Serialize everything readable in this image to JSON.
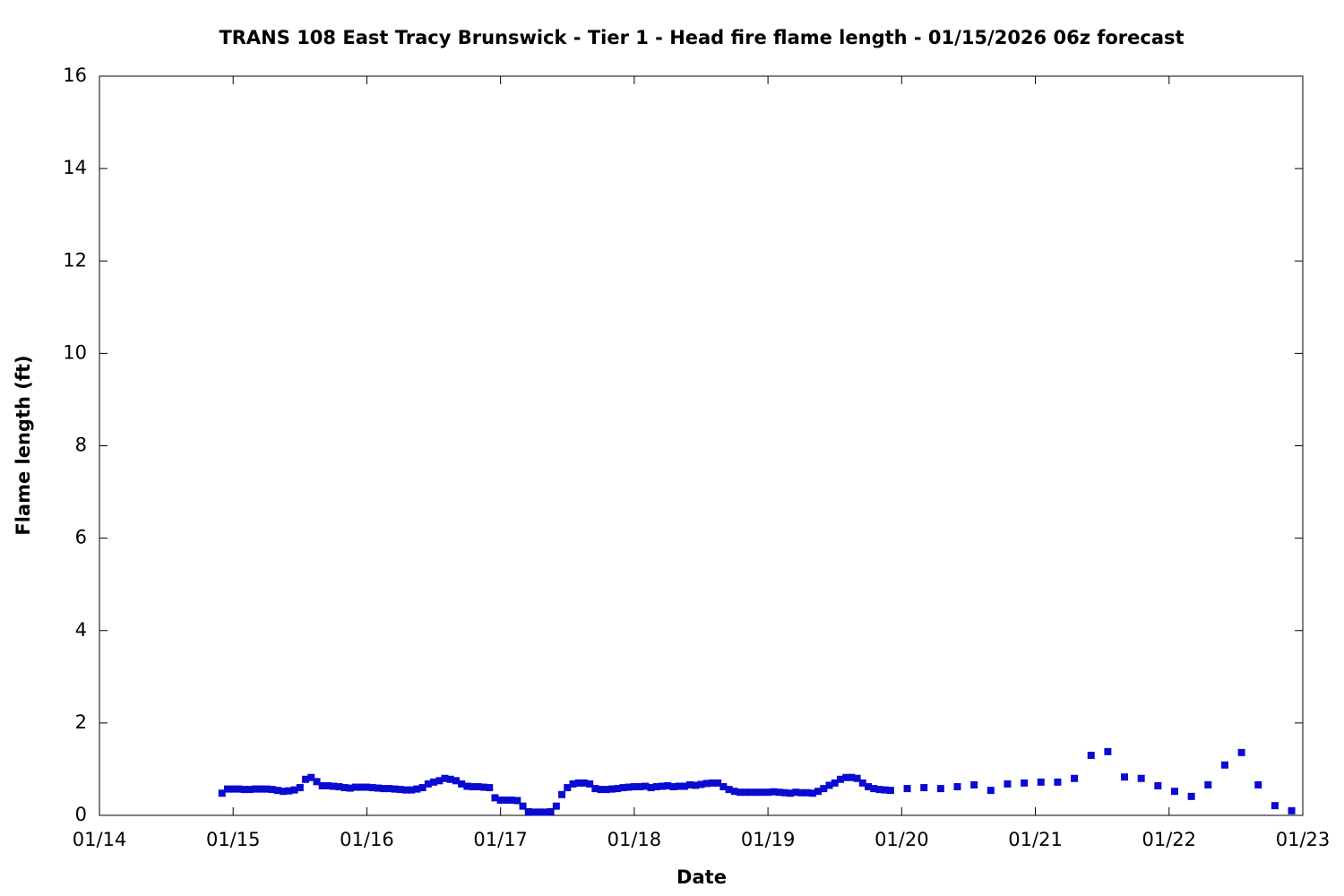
{
  "chart_data": {
    "type": "scatter",
    "title": "TRANS 108 East Tracy Brunswick - Tier 1 - Head fire flame length - 01/15/2026 06z forecast",
    "x_label": "Date",
    "y_label": "Flame length (ft)",
    "color": "#0a0ad2",
    "x": [
      22,
      23,
      24,
      25,
      26,
      27,
      28,
      29,
      30,
      31,
      32,
      33,
      34,
      35,
      36,
      37,
      38,
      39,
      40,
      41,
      42,
      43,
      44,
      45,
      46,
      47,
      48,
      49,
      50,
      51,
      52,
      53,
      54,
      55,
      56,
      57,
      58,
      59,
      60,
      61,
      62,
      63,
      64,
      65,
      66,
      67,
      68,
      69,
      70,
      71,
      72,
      73,
      74,
      75,
      76,
      77,
      78,
      79,
      80,
      81,
      82,
      83,
      84,
      85,
      86,
      87,
      88,
      89,
      90,
      91,
      92,
      93,
      94,
      95,
      96,
      97,
      98,
      99,
      100,
      101,
      102,
      103,
      104,
      105,
      106,
      107,
      108,
      109,
      110,
      111,
      112,
      113,
      114,
      115,
      116,
      117,
      118,
      119,
      120,
      121,
      122,
      123,
      124,
      125,
      126,
      127,
      128,
      129,
      130,
      131,
      132,
      133,
      134,
      135,
      136,
      137,
      138,
      139,
      140,
      141,
      142,
      145,
      148,
      151,
      154,
      157,
      160,
      163,
      166,
      169,
      172,
      175,
      178,
      181,
      184,
      187,
      190,
      193,
      196,
      199,
      202,
      205,
      208,
      211,
      214
    ],
    "values": [
      0.48,
      0.57,
      0.57,
      0.57,
      0.56,
      0.56,
      0.57,
      0.57,
      0.57,
      0.56,
      0.54,
      0.52,
      0.53,
      0.55,
      0.6,
      0.78,
      0.82,
      0.73,
      0.64,
      0.64,
      0.63,
      0.62,
      0.6,
      0.59,
      0.61,
      0.61,
      0.61,
      0.6,
      0.59,
      0.58,
      0.58,
      0.57,
      0.56,
      0.55,
      0.55,
      0.57,
      0.6,
      0.68,
      0.72,
      0.75,
      0.8,
      0.78,
      0.75,
      0.68,
      0.63,
      0.62,
      0.62,
      0.61,
      0.6,
      0.38,
      0.33,
      0.33,
      0.33,
      0.32,
      0.2,
      0.08,
      0.07,
      0.07,
      0.07,
      0.08,
      0.2,
      0.45,
      0.6,
      0.68,
      0.7,
      0.7,
      0.68,
      0.58,
      0.56,
      0.56,
      0.57,
      0.58,
      0.6,
      0.61,
      0.62,
      0.62,
      0.63,
      0.6,
      0.62,
      0.63,
      0.64,
      0.62,
      0.63,
      0.63,
      0.66,
      0.65,
      0.67,
      0.69,
      0.7,
      0.7,
      0.62,
      0.56,
      0.52,
      0.5,
      0.5,
      0.5,
      0.5,
      0.5,
      0.5,
      0.51,
      0.5,
      0.49,
      0.48,
      0.5,
      0.49,
      0.49,
      0.48,
      0.52,
      0.58,
      0.65,
      0.7,
      0.78,
      0.82,
      0.82,
      0.8,
      0.7,
      0.62,
      0.58,
      0.56,
      0.55,
      0.54,
      0.58,
      0.6,
      0.58,
      0.62,
      0.66,
      0.54,
      0.68,
      0.7,
      0.72,
      0.72,
      0.8,
      1.3,
      1.38,
      0.83,
      0.8,
      0.64,
      0.52,
      0.41,
      0.66,
      1.09,
      1.36,
      0.66,
      0.21,
      0.1
    ],
    "xlim": [
      0,
      216
    ],
    "xticks": [
      {
        "value": 0,
        "label": "01/14"
      },
      {
        "value": 24,
        "label": "01/15"
      },
      {
        "value": 48,
        "label": "01/16"
      },
      {
        "value": 72,
        "label": "01/17"
      },
      {
        "value": 96,
        "label": "01/18"
      },
      {
        "value": 120,
        "label": "01/19"
      },
      {
        "value": 144,
        "label": "01/20"
      },
      {
        "value": 168,
        "label": "01/21"
      },
      {
        "value": 192,
        "label": "01/22"
      },
      {
        "value": 216,
        "label": "01/23"
      }
    ],
    "ylim": [
      0,
      16
    ],
    "yticks": [
      0,
      2,
      4,
      6,
      8,
      10,
      12,
      14,
      16
    ]
  }
}
